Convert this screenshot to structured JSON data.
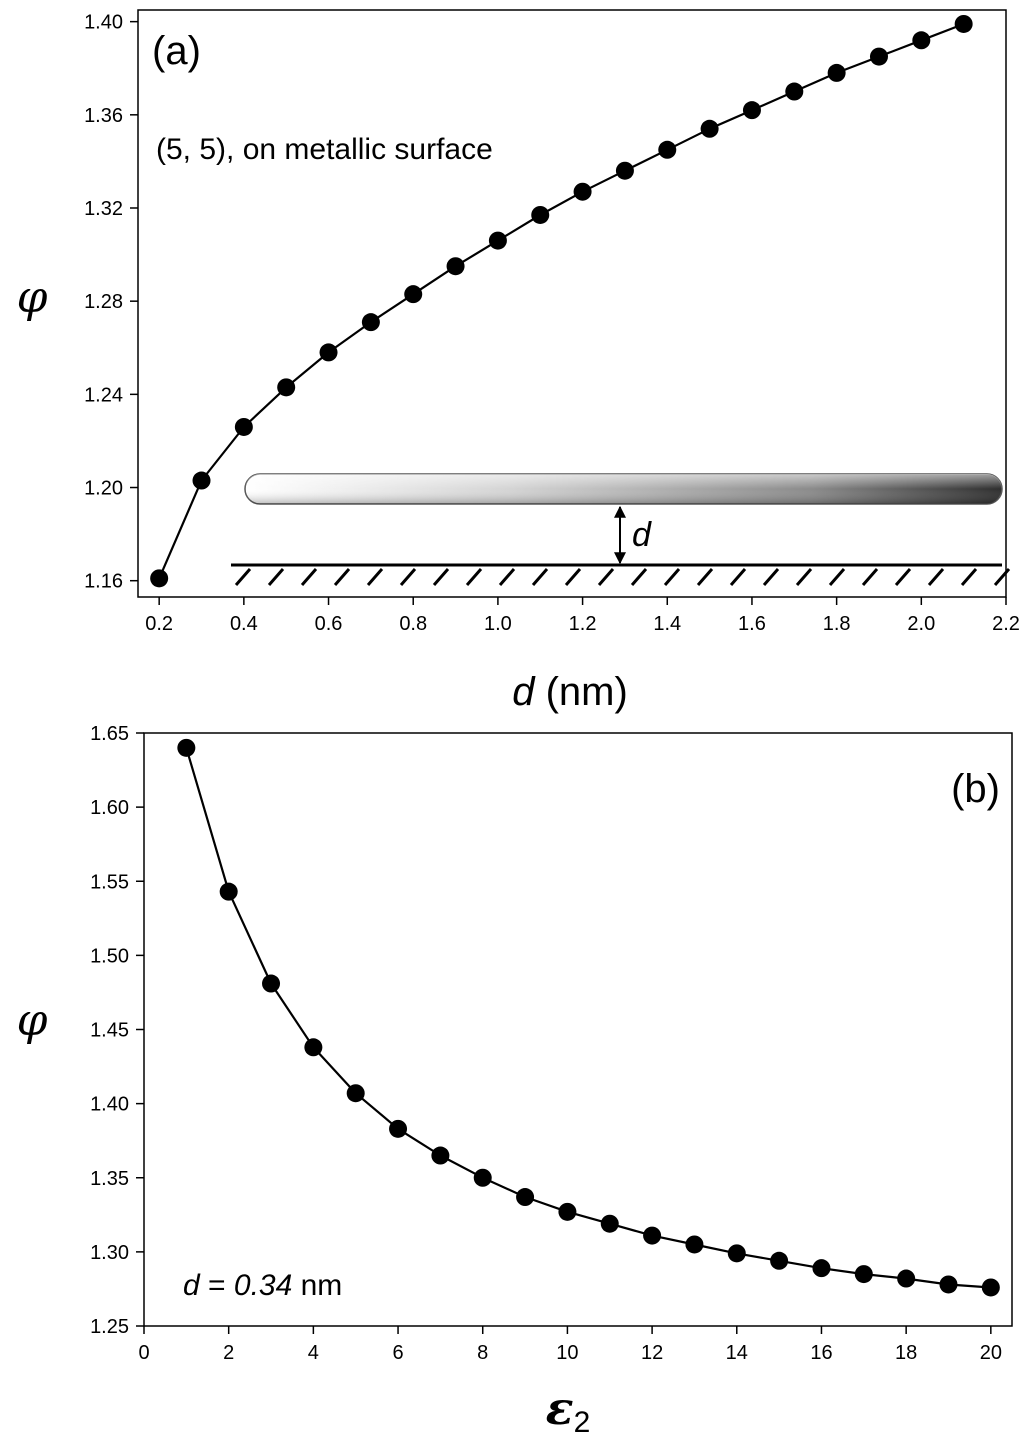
{
  "chart_data": [
    {
      "type": "line",
      "panel_label": "(a)",
      "annotation": "(5, 5), on metallic surface",
      "inset_label": "d",
      "xlabel": {
        "var": "d",
        "unit": " (nm)"
      },
      "ylabel": "φ",
      "xlim": [
        0.15,
        2.2
      ],
      "ylim": [
        1.153,
        1.405
      ],
      "x_ticks": [
        0.2,
        0.4,
        0.6,
        0.8,
        1.0,
        1.2,
        1.4,
        1.6,
        1.8,
        2.0,
        2.2
      ],
      "x_tick_labels": [
        "0.2",
        "0.4",
        "0.6",
        "0.8",
        "1.0",
        "1.2",
        "1.4",
        "1.6",
        "1.8",
        "2.0",
        "2.2"
      ],
      "y_ticks": [
        1.16,
        1.2,
        1.24,
        1.28,
        1.32,
        1.36,
        1.4
      ],
      "y_tick_labels": [
        "1.16",
        "1.20",
        "1.24",
        "1.28",
        "1.32",
        "1.36",
        "1.40"
      ],
      "series": [
        {
          "x": [
            0.2,
            0.3,
            0.4,
            0.5,
            0.6,
            0.7,
            0.8,
            0.9,
            1.0,
            1.1,
            1.2,
            1.3,
            1.4,
            1.5,
            1.6,
            1.7,
            1.8,
            1.9,
            2.0,
            2.1
          ],
          "y": [
            1.161,
            1.203,
            1.226,
            1.243,
            1.258,
            1.271,
            1.283,
            1.295,
            1.306,
            1.317,
            1.327,
            1.336,
            1.345,
            1.354,
            1.362,
            1.37,
            1.378,
            1.385,
            1.392,
            1.399
          ]
        }
      ],
      "grid": false
    },
    {
      "type": "line",
      "panel_label": "(b)",
      "annotation": {
        "var": "d",
        "eq": " = ",
        "val": "0.34",
        "unit": " nm"
      },
      "xlabel": {
        "var": "ε",
        "sub": "2"
      },
      "ylabel": "φ",
      "xlim": [
        0,
        20.5
      ],
      "ylim": [
        1.25,
        1.65
      ],
      "x_ticks": [
        0,
        2,
        4,
        6,
        8,
        10,
        12,
        14,
        16,
        18,
        20
      ],
      "x_tick_labels": [
        "0",
        "2",
        "4",
        "6",
        "8",
        "10",
        "12",
        "14",
        "16",
        "18",
        "20"
      ],
      "y_ticks": [
        1.25,
        1.3,
        1.35,
        1.4,
        1.45,
        1.5,
        1.55,
        1.6,
        1.65
      ],
      "y_tick_labels": [
        "1.25",
        "1.30",
        "1.35",
        "1.40",
        "1.45",
        "1.50",
        "1.55",
        "1.60",
        "1.65"
      ],
      "series": [
        {
          "x": [
            1,
            2,
            3,
            4,
            5,
            6,
            7,
            8,
            9,
            10,
            11,
            12,
            13,
            14,
            15,
            16,
            17,
            18,
            19,
            20
          ],
          "y": [
            1.64,
            1.543,
            1.481,
            1.438,
            1.407,
            1.383,
            1.365,
            1.35,
            1.337,
            1.327,
            1.319,
            1.311,
            1.305,
            1.299,
            1.294,
            1.289,
            1.285,
            1.282,
            1.278,
            1.276
          ]
        }
      ],
      "grid": false
    }
  ]
}
